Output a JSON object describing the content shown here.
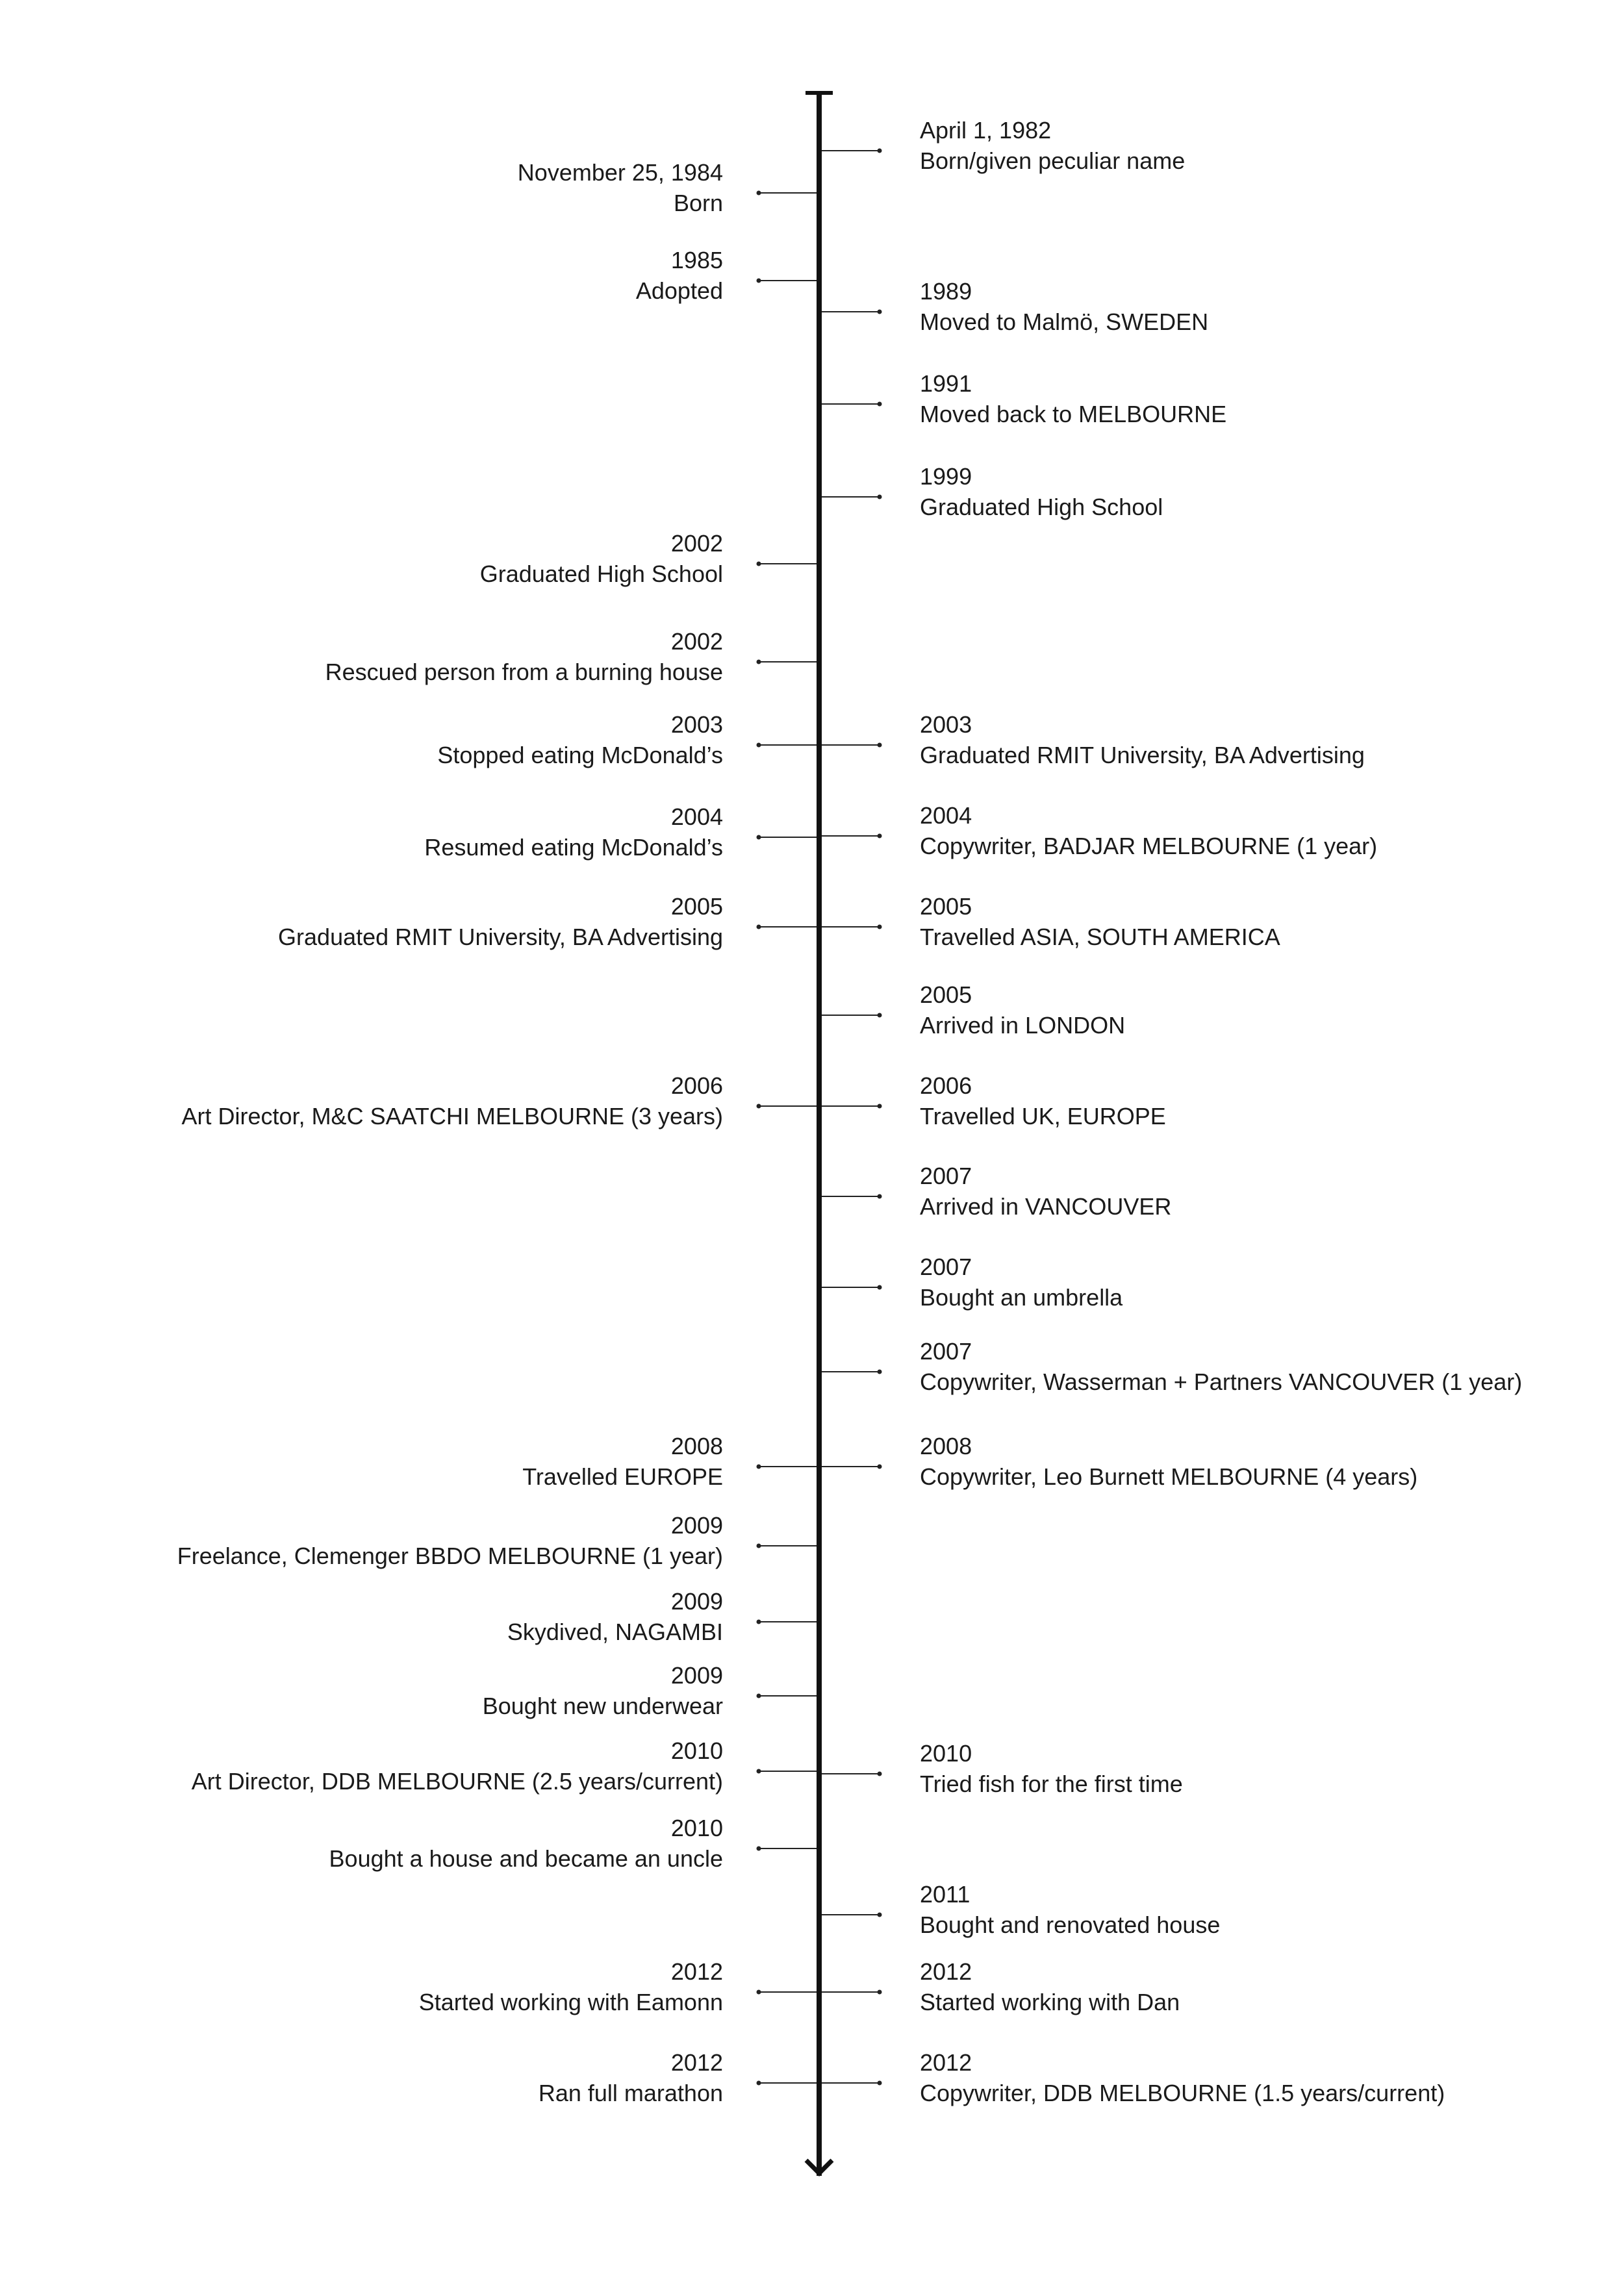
{
  "left_events": [
    {
      "date": "November 25, 1984",
      "desc": "Born"
    },
    {
      "date": "1985",
      "desc": "Adopted"
    },
    {
      "date": "2002",
      "desc": "Graduated High School"
    },
    {
      "date": "2002",
      "desc": "Rescued person from a burning house"
    },
    {
      "date": "2003",
      "desc": "Stopped eating McDonald’s"
    },
    {
      "date": "2004",
      "desc": "Resumed eating McDonald’s"
    },
    {
      "date": "2005",
      "desc": "Graduated RMIT University, BA Advertising"
    },
    {
      "date": "2006",
      "desc": "Art Director, M&C SAATCHI MELBOURNE (3 years)"
    },
    {
      "date": "2008",
      "desc": "Travelled EUROPE"
    },
    {
      "date": "2009",
      "desc": "Freelance, Clemenger BBDO MELBOURNE (1 year)"
    },
    {
      "date": "2009",
      "desc": "Skydived, NAGAMBI"
    },
    {
      "date": "2009",
      "desc": "Bought new underwear"
    },
    {
      "date": "2010",
      "desc": "Art Director, DDB MELBOURNE (2.5 years/current)"
    },
    {
      "date": "2010",
      "desc": "Bought a house and became an uncle"
    },
    {
      "date": "2012",
      "desc": "Started working with Eamonn"
    },
    {
      "date": "2012",
      "desc": "Ran full marathon"
    }
  ],
  "right_events": [
    {
      "date": "April 1, 1982",
      "desc": "Born/given peculiar name"
    },
    {
      "date": "1989",
      "desc": "Moved to Malmö, SWEDEN"
    },
    {
      "date": "1991",
      "desc": "Moved back to MELBOURNE"
    },
    {
      "date": "1999",
      "desc": "Graduated High School"
    },
    {
      "date": "2003",
      "desc": "Graduated RMIT University, BA Advertising"
    },
    {
      "date": "2004",
      "desc": "Copywriter, BADJAR MELBOURNE (1 year)"
    },
    {
      "date": "2005",
      "desc": "Travelled ASIA, SOUTH AMERICA"
    },
    {
      "date": "2005",
      "desc": "Arrived in LONDON"
    },
    {
      "date": "2006",
      "desc": "Travelled UK, EUROPE"
    },
    {
      "date": "2007",
      "desc": "Arrived in VANCOUVER"
    },
    {
      "date": "2007",
      "desc": "Bought an umbrella"
    },
    {
      "date": "2007",
      "desc": "Copywriter, Wasserman + Partners VANCOUVER (1 year)"
    },
    {
      "date": "2008",
      "desc": "Copywriter, Leo Burnett MELBOURNE (4 years)"
    },
    {
      "date": "2010",
      "desc": "Tried fish for the first time"
    },
    {
      "date": "2011",
      "desc": "Bought and renovated house"
    },
    {
      "date": "2012",
      "desc": "Started working with Dan"
    },
    {
      "date": "2012",
      "desc": "Copywriter, DDB MELBOURNE (1.5 years/current)"
    }
  ]
}
